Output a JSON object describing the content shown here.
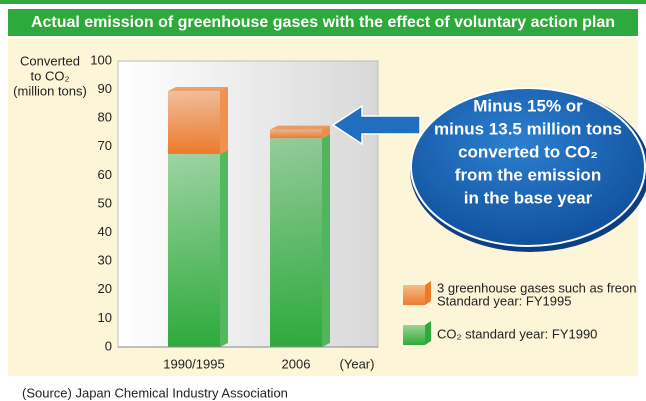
{
  "chart_data": {
    "type": "bar",
    "stacked": true,
    "title": "Actual emission of greenhouse gases with the effect of voluntary action plan",
    "y_label": [
      "Converted",
      "to CO₂",
      "(million tons)"
    ],
    "x_label": "(Year)",
    "categories": [
      "1990/1995",
      "2006"
    ],
    "series": [
      {
        "name": "CO₂ standard year: FY1990",
        "color": "#2eaa3c",
        "values": [
          67.5,
          73
        ]
      },
      {
        "name": "3 greenhouse gases such as freon",
        "legend_note": "Standard year: FY1995",
        "color": "#ec7a2c",
        "values": [
          22,
          3
        ]
      }
    ],
    "ylim": [
      0,
      100
    ],
    "yticks": [
      0,
      10,
      20,
      30,
      40,
      50,
      60,
      70,
      80,
      90,
      100
    ],
    "grid": false,
    "annotation": [
      "Minus 15% or",
      "minus 13.5 million tons",
      "converted to CO₂",
      "from the emission",
      "in the base year"
    ],
    "source": "(Source) Japan Chemical Industry Association"
  }
}
